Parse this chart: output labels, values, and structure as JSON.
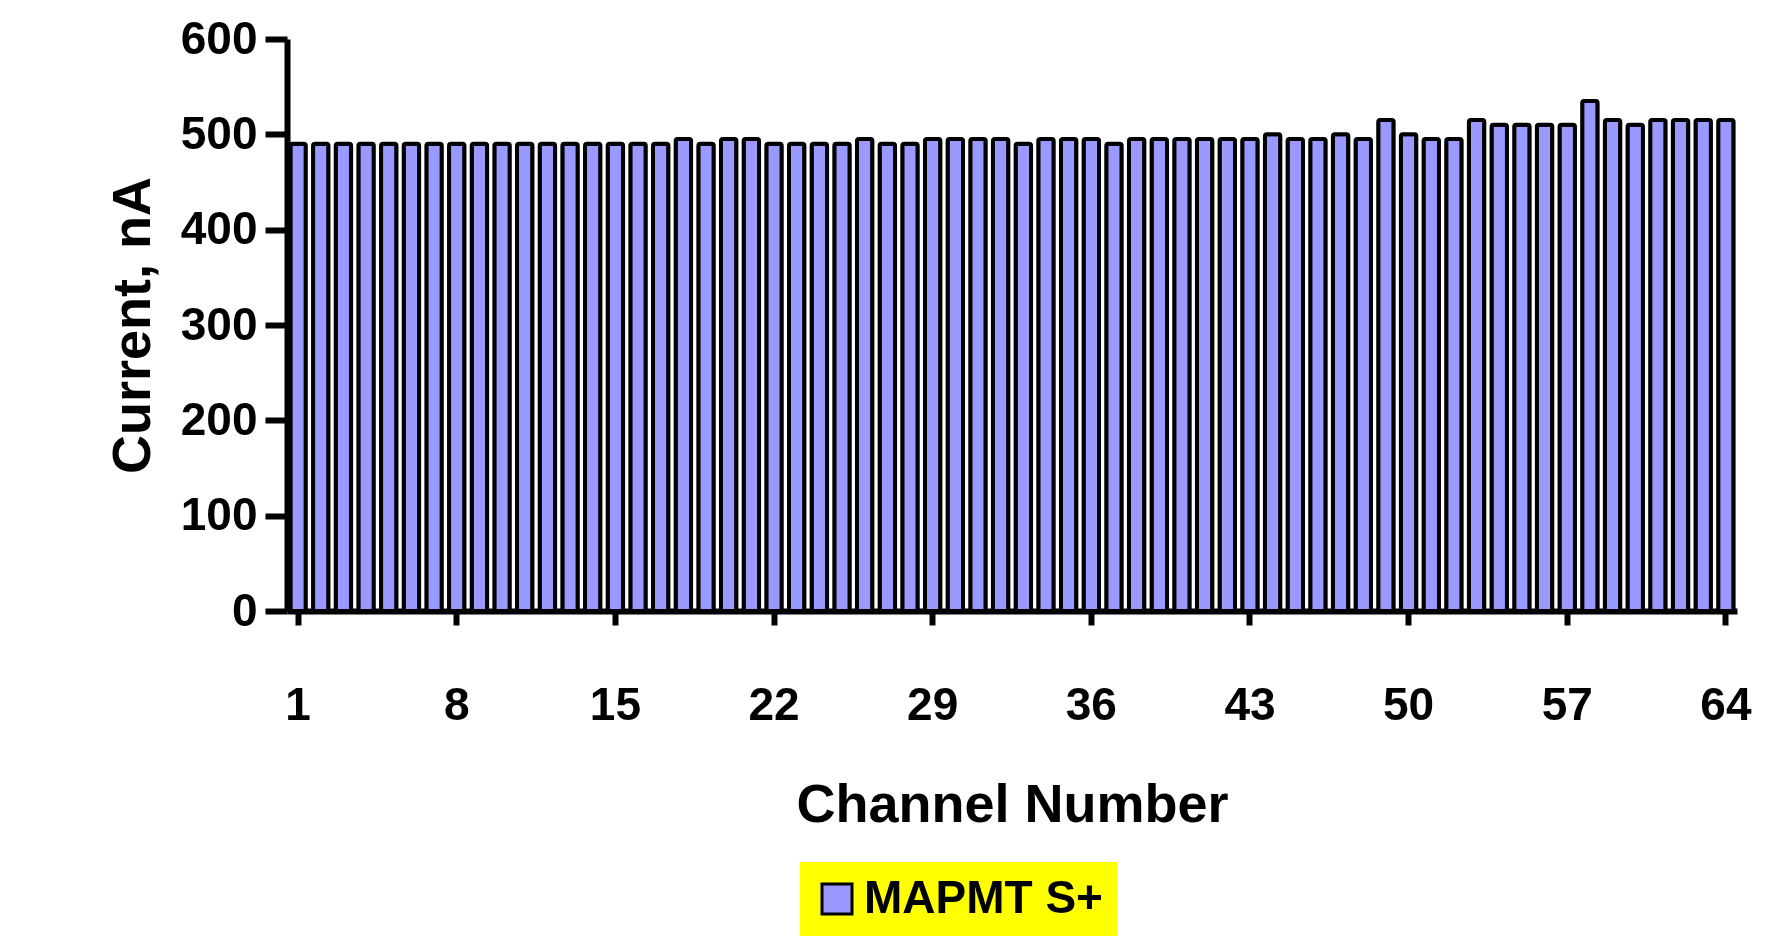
{
  "chart_data": {
    "type": "bar",
    "xlabel": "Channel Number",
    "ylabel": "Current, nA",
    "categories": [
      "1",
      null,
      null,
      null,
      null,
      null,
      null,
      "8",
      null,
      null,
      null,
      null,
      null,
      null,
      "15",
      null,
      null,
      null,
      null,
      null,
      null,
      "22",
      null,
      null,
      null,
      null,
      null,
      null,
      "29",
      null,
      null,
      null,
      null,
      null,
      null,
      "36",
      null,
      null,
      null,
      null,
      null,
      null,
      "43",
      null,
      null,
      null,
      null,
      null,
      null,
      "50",
      null,
      null,
      null,
      null,
      null,
      null,
      "57",
      null,
      null,
      null,
      null,
      null,
      null,
      "64"
    ],
    "series": [
      {
        "name": "MAPMT S+",
        "color": "#9999ff",
        "values": [
          490,
          490,
          490,
          490,
          490,
          490,
          490,
          490,
          490,
          490,
          490,
          490,
          490,
          490,
          490,
          490,
          490,
          495,
          490,
          495,
          495,
          490,
          490,
          490,
          490,
          495,
          490,
          490,
          495,
          495,
          495,
          495,
          490,
          495,
          495,
          495,
          490,
          495,
          495,
          495,
          495,
          495,
          495,
          500,
          495,
          495,
          500,
          495,
          515,
          500,
          495,
          495,
          515,
          510,
          510,
          510,
          510,
          535,
          515,
          510,
          515,
          515,
          515,
          515
        ]
      }
    ],
    "ylim": [
      0,
      600
    ],
    "yticks": [
      0,
      100,
      200,
      300,
      400,
      500,
      600
    ],
    "grid": false,
    "legend": "bottom"
  }
}
